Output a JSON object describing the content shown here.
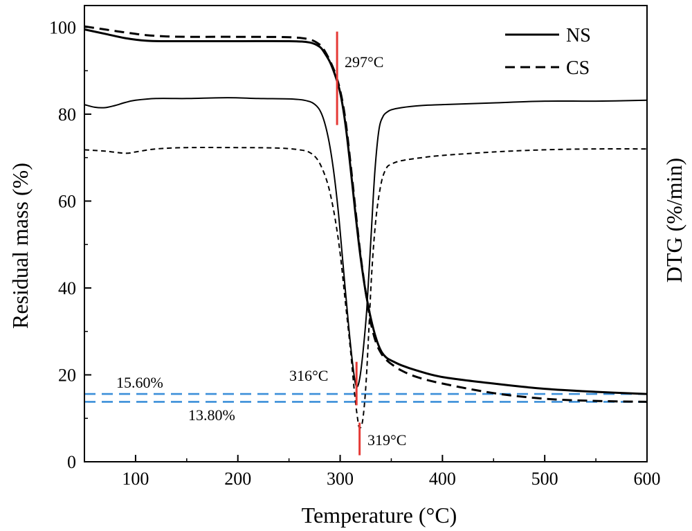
{
  "chart_data": {
    "type": "line",
    "xlabel": "Temperature (°C)",
    "ylabel_left": "Residual mass (%)",
    "ylabel_right": "DTG (%/min)",
    "xlim": [
      50,
      600
    ],
    "ylim": [
      0,
      105
    ],
    "xticks": [
      100,
      200,
      300,
      400,
      500,
      600
    ],
    "xtick_labels": [
      "100",
      "200",
      "300",
      "400",
      "500",
      "600"
    ],
    "yticks": [
      0,
      20,
      40,
      60,
      80,
      100
    ],
    "ytick_labels": [
      "0",
      "20",
      "40",
      "60",
      "80",
      "100"
    ],
    "legend": {
      "placement": "top-right",
      "entries": [
        "NS",
        "CS"
      ]
    },
    "colors": {
      "axis": "#000000",
      "marker": "#e53935",
      "reference": "#3b8fd9",
      "curve": "#000000"
    },
    "series": [
      {
        "name": "NS",
        "kind": "TG",
        "line_style": "solid",
        "x": [
          50,
          70,
          90,
          110,
          130,
          150,
          200,
          250,
          270,
          280,
          285,
          290,
          295,
          300,
          305,
          310,
          315,
          320,
          325,
          330,
          335,
          340,
          345,
          350,
          360,
          375,
          400,
          450,
          500,
          550,
          600
        ],
        "y": [
          99.5,
          98.5,
          97.5,
          96.9,
          96.8,
          96.8,
          96.8,
          96.8,
          96.5,
          95.5,
          94,
          92,
          89,
          85,
          78,
          68,
          57,
          47,
          39,
          33,
          28.5,
          25.5,
          24,
          23.3,
          22.2,
          21,
          19.5,
          18,
          16.8,
          16.1,
          15.6
        ]
      },
      {
        "name": "CS",
        "kind": "TG",
        "line_style": "dashed",
        "x": [
          50,
          70,
          90,
          110,
          130,
          150,
          200,
          250,
          270,
          280,
          285,
          290,
          295,
          300,
          305,
          310,
          315,
          320,
          325,
          330,
          335,
          340,
          345,
          350,
          360,
          375,
          400,
          450,
          500,
          550,
          600
        ],
        "y": [
          100.2,
          99.5,
          98.8,
          98.2,
          97.9,
          97.8,
          97.8,
          97.7,
          97.2,
          96,
          94.5,
          92.3,
          89.5,
          85.5,
          79,
          69,
          58,
          47.5,
          39,
          32,
          27.5,
          25,
          23.5,
          22.5,
          21,
          19.5,
          18,
          15.8,
          14.5,
          14,
          13.8
        ]
      },
      {
        "name": "NS",
        "kind": "DTG",
        "line_style": "solid",
        "x": [
          50,
          60,
          70,
          80,
          90,
          100,
          120,
          150,
          190,
          220,
          250,
          265,
          275,
          282,
          288,
          293,
          298,
          303,
          308,
          313,
          316,
          319,
          322,
          326,
          330,
          334,
          338,
          342,
          346,
          350,
          360,
          380,
          400,
          450,
          500,
          550,
          600
        ],
        "y": [
          82.2,
          81.6,
          81.5,
          82,
          82.7,
          83.2,
          83.6,
          83.6,
          83.8,
          83.6,
          83.5,
          83.2,
          82.3,
          80,
          75,
          68,
          58,
          45,
          32,
          21,
          17.3,
          19,
          24.5,
          35,
          51,
          67,
          76.5,
          79.5,
          80.5,
          81,
          81.5,
          82,
          82.2,
          82.6,
          83,
          83,
          83.2
        ]
      },
      {
        "name": "CS",
        "kind": "DTG",
        "line_style": "dashed",
        "x": [
          50,
          70,
          90,
          100,
          120,
          150,
          200,
          240,
          260,
          270,
          278,
          285,
          290,
          295,
          300,
          305,
          310,
          314,
          317,
          319,
          322,
          325,
          328,
          331,
          335,
          340,
          345,
          350,
          360,
          380,
          400,
          450,
          500,
          550,
          600
        ],
        "y": [
          71.8,
          71.5,
          71,
          71.3,
          72,
          72.3,
          72.3,
          72.2,
          71.8,
          71.2,
          69.5,
          66,
          62,
          56,
          48,
          37,
          26,
          16,
          10,
          7.8,
          9.5,
          17,
          30,
          44,
          56,
          64,
          67.5,
          68.5,
          69.3,
          70,
          70.5,
          71.3,
          71.8,
          72,
          72
        ]
      }
    ],
    "annotations": [
      {
        "label": "297°C",
        "x": 297,
        "y_range": [
          77.5,
          99
        ]
      },
      {
        "label": "316°C",
        "x": 316,
        "y_range": [
          13,
          23
        ]
      },
      {
        "label": "319°C",
        "x": 319,
        "y_range": [
          1.5,
          9
        ]
      },
      {
        "label": "15.60%",
        "y": 15.6
      },
      {
        "label": "13.80%",
        "y": 13.8
      }
    ]
  }
}
